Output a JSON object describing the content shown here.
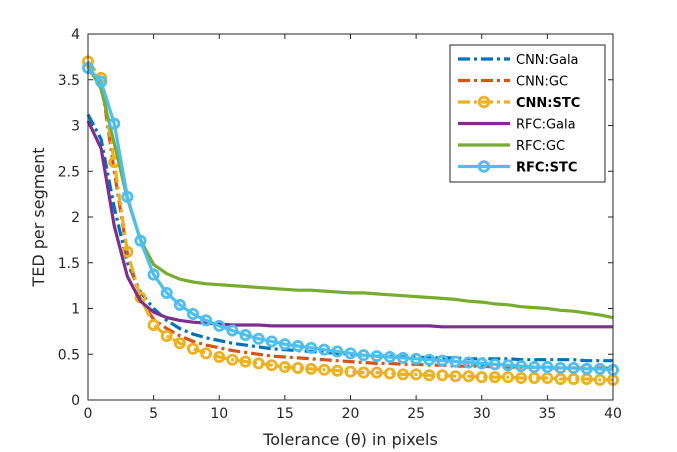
{
  "chart_data": {
    "type": "line",
    "title": "",
    "xlabel": "Tolerance (θ) in pixels",
    "ylabel": "TED per segment",
    "xlim": [
      0,
      40
    ],
    "ylim": [
      0,
      4
    ],
    "xticks": [
      0,
      5,
      10,
      15,
      20,
      25,
      30,
      35,
      40
    ],
    "yticks": [
      0,
      0.5,
      1,
      1.5,
      2,
      2.5,
      3,
      3.5,
      4
    ],
    "xtick_labels": [
      "0",
      "5",
      "10",
      "15",
      "20",
      "25",
      "30",
      "35",
      "40"
    ],
    "ytick_labels": [
      "0",
      "0.5",
      "1",
      "1.5",
      "2",
      "2.5",
      "3",
      "3.5",
      "4"
    ],
    "grid": false,
    "legend_position": "top-right",
    "x": [
      0,
      1,
      2,
      3,
      4,
      5,
      6,
      7,
      8,
      9,
      10,
      11,
      12,
      13,
      14,
      15,
      16,
      17,
      18,
      19,
      20,
      21,
      22,
      23,
      24,
      25,
      26,
      27,
      28,
      29,
      30,
      31,
      32,
      33,
      34,
      35,
      36,
      37,
      38,
      39,
      40
    ],
    "series": [
      {
        "name": "CNN:Gala",
        "color": "#0072bd",
        "dash": "dashdot",
        "marker": "none",
        "bold": false,
        "values": [
          3.12,
          2.85,
          2.1,
          1.5,
          1.18,
          1.0,
          0.87,
          0.78,
          0.72,
          0.68,
          0.65,
          0.62,
          0.6,
          0.58,
          0.56,
          0.55,
          0.54,
          0.53,
          0.52,
          0.51,
          0.5,
          0.49,
          0.48,
          0.48,
          0.47,
          0.47,
          0.46,
          0.46,
          0.46,
          0.45,
          0.45,
          0.45,
          0.45,
          0.44,
          0.44,
          0.44,
          0.44,
          0.44,
          0.43,
          0.43,
          0.43
        ]
      },
      {
        "name": "CNN:GC",
        "color": "#d95319",
        "dash": "dashdot",
        "marker": "none",
        "bold": false,
        "values": [
          3.6,
          3.5,
          2.5,
          1.6,
          1.1,
          0.88,
          0.78,
          0.7,
          0.64,
          0.6,
          0.57,
          0.54,
          0.52,
          0.5,
          0.48,
          0.47,
          0.46,
          0.45,
          0.44,
          0.43,
          0.42,
          0.41,
          0.4,
          0.4,
          0.39,
          0.39,
          0.38,
          0.38,
          0.37,
          0.37,
          0.37,
          0.36,
          0.36,
          0.36,
          0.36,
          0.35,
          0.35,
          0.35,
          0.35,
          0.35,
          0.35
        ]
      },
      {
        "name": "CNN:STC",
        "color": "#edb120",
        "dash": "dashdot",
        "marker": "circle",
        "bold": true,
        "values": [
          3.7,
          3.52,
          2.6,
          1.62,
          1.12,
          0.82,
          0.7,
          0.62,
          0.56,
          0.51,
          0.47,
          0.44,
          0.42,
          0.4,
          0.38,
          0.36,
          0.35,
          0.34,
          0.33,
          0.32,
          0.31,
          0.3,
          0.3,
          0.29,
          0.28,
          0.28,
          0.27,
          0.27,
          0.26,
          0.26,
          0.25,
          0.25,
          0.25,
          0.24,
          0.24,
          0.24,
          0.23,
          0.23,
          0.23,
          0.22,
          0.22
        ]
      },
      {
        "name": "RFC:Gala",
        "color": "#7e2f8e",
        "dash": "solid",
        "marker": "none",
        "bold": false,
        "values": [
          3.05,
          2.75,
          1.9,
          1.35,
          1.08,
          0.96,
          0.9,
          0.87,
          0.85,
          0.84,
          0.83,
          0.82,
          0.82,
          0.82,
          0.81,
          0.81,
          0.81,
          0.81,
          0.81,
          0.81,
          0.81,
          0.81,
          0.81,
          0.81,
          0.81,
          0.81,
          0.81,
          0.8,
          0.8,
          0.8,
          0.8,
          0.8,
          0.8,
          0.8,
          0.8,
          0.8,
          0.8,
          0.8,
          0.8,
          0.8,
          0.8
        ]
      },
      {
        "name": "RFC:GC",
        "color": "#77ac30",
        "dash": "solid",
        "marker": "none",
        "bold": false,
        "values": [
          3.65,
          3.4,
          2.8,
          2.2,
          1.75,
          1.48,
          1.38,
          1.32,
          1.29,
          1.27,
          1.26,
          1.25,
          1.24,
          1.23,
          1.22,
          1.21,
          1.2,
          1.2,
          1.19,
          1.18,
          1.17,
          1.17,
          1.16,
          1.15,
          1.14,
          1.13,
          1.12,
          1.11,
          1.1,
          1.08,
          1.07,
          1.05,
          1.04,
          1.02,
          1.01,
          1.0,
          0.98,
          0.97,
          0.95,
          0.93,
          0.9
        ]
      },
      {
        "name": "RFC:STC",
        "color": "#4dbeee",
        "dash": "solid",
        "marker": "circle",
        "bold": true,
        "values": [
          3.63,
          3.48,
          3.02,
          2.22,
          1.74,
          1.37,
          1.17,
          1.04,
          0.94,
          0.87,
          0.81,
          0.76,
          0.71,
          0.67,
          0.64,
          0.61,
          0.59,
          0.57,
          0.55,
          0.53,
          0.51,
          0.49,
          0.48,
          0.47,
          0.46,
          0.45,
          0.44,
          0.43,
          0.42,
          0.41,
          0.4,
          0.39,
          0.38,
          0.37,
          0.36,
          0.36,
          0.35,
          0.35,
          0.34,
          0.34,
          0.33
        ]
      }
    ]
  }
}
